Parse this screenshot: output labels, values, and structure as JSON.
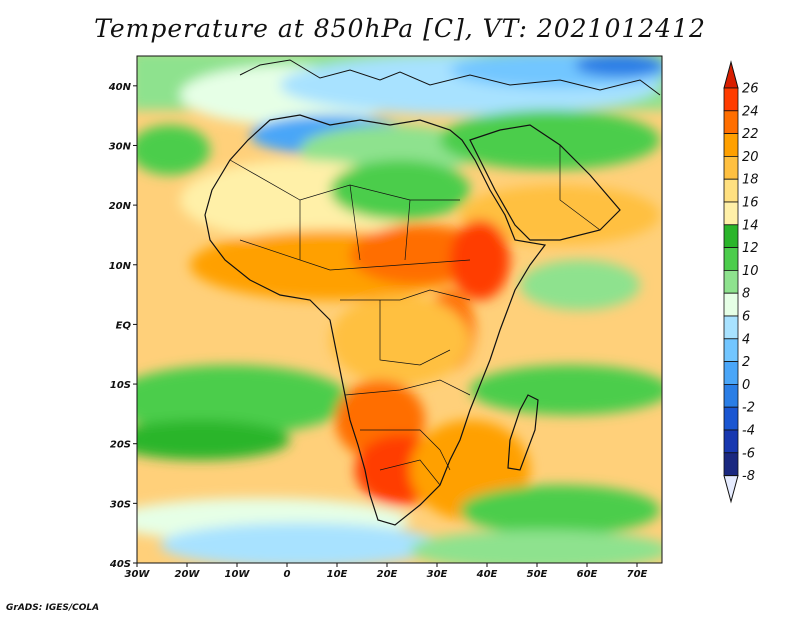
{
  "title": "Temperature at 850hPa [C], VT: 2021012412",
  "credit": "GrADS: IGES/COLA",
  "map": {
    "lon_range": [
      -30,
      75
    ],
    "lat_range": [
      -40,
      45
    ],
    "lon_labels": [
      {
        "lon": -30,
        "text": "30W"
      },
      {
        "lon": -20,
        "text": "20W"
      },
      {
        "lon": -10,
        "text": "10W"
      },
      {
        "lon": 0,
        "text": "0"
      },
      {
        "lon": 10,
        "text": "10E"
      },
      {
        "lon": 20,
        "text": "20E"
      },
      {
        "lon": 30,
        "text": "30E"
      },
      {
        "lon": 40,
        "text": "40E"
      },
      {
        "lon": 50,
        "text": "50E"
      },
      {
        "lon": 60,
        "text": "60E"
      },
      {
        "lon": 70,
        "text": "70E"
      }
    ],
    "lat_labels": [
      {
        "lat": 40,
        "text": "40N"
      },
      {
        "lat": 30,
        "text": "30N"
      },
      {
        "lat": 20,
        "text": "20N"
      },
      {
        "lat": 10,
        "text": "10N"
      },
      {
        "lat": 0,
        "text": "EQ"
      },
      {
        "lat": -10,
        "text": "10S"
      },
      {
        "lat": -20,
        "text": "20S"
      },
      {
        "lat": -30,
        "text": "30S"
      },
      {
        "lat": -40,
        "text": "40S"
      }
    ]
  },
  "colorbar": {
    "levels": [
      "26",
      "24",
      "22",
      "20",
      "18",
      "16",
      "14",
      "12",
      "10",
      "8",
      "6",
      "4",
      "2",
      "0",
      "-2",
      "-4",
      "-6",
      "-8"
    ],
    "colors": [
      "#ff3c00",
      "#ff6e00",
      "#ffa000",
      "#ffc040",
      "#ffe080",
      "#fff0a8",
      "#2ab52a",
      "#4ccd4c",
      "#8ee28e",
      "#e6ffe6",
      "#a8e2ff",
      "#72c6ff",
      "#4aa6f8",
      "#2a7ee6",
      "#1a56d2",
      "#1838b0",
      "#1a2880"
    ],
    "top_color": "#d81e00",
    "bottom_color": "#e6ecff"
  }
}
